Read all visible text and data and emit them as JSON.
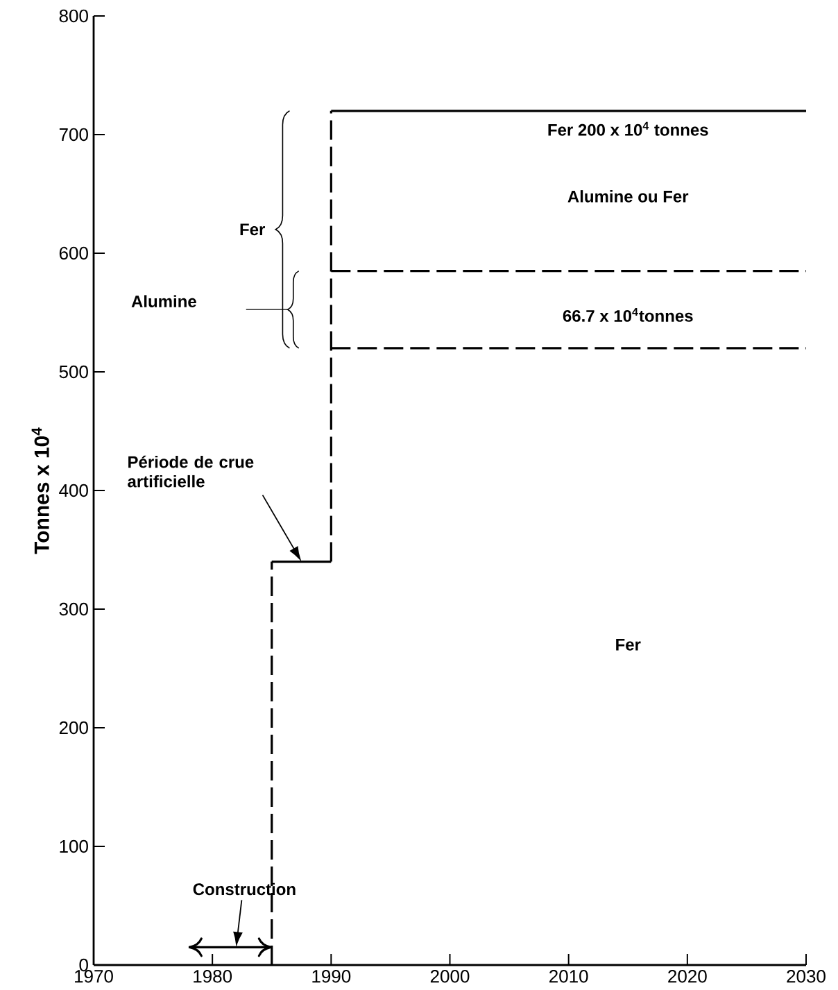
{
  "chart_data": {
    "type": "line",
    "ylabel": "Tonnes x 10$^{4}$",
    "xlim": [
      1970,
      2030
    ],
    "xticks": [
      1970,
      1980,
      1990,
      2000,
      2010,
      2020,
      2030
    ],
    "ylim": [
      0,
      800
    ],
    "yticks": [
      0,
      100,
      200,
      300,
      400,
      500,
      600,
      700,
      800
    ],
    "grid": false,
    "marker": "none",
    "series": [
      {
        "color": "#000000",
        "line_style": "dashed",
        "x": [
          1985,
          1985
        ],
        "values": [
          0,
          340
        ]
      },
      {
        "color": "#000000",
        "line_style": "solid",
        "x": [
          1985,
          1990
        ],
        "values": [
          340,
          340
        ]
      },
      {
        "color": "#000000",
        "line_style": "dashed",
        "x": [
          1990,
          1990
        ],
        "values": [
          340,
          720
        ]
      },
      {
        "color": "#000000",
        "line_style": "solid",
        "x": [
          1990,
          2030
        ],
        "values": [
          720,
          720
        ]
      },
      {
        "color": "#000000",
        "line_style": "dashed",
        "x": [
          1990,
          2030
        ],
        "values": [
          585,
          585
        ]
      },
      {
        "color": "#000000",
        "line_style": "dashed",
        "x": [
          1990,
          2030
        ],
        "values": [
          520,
          520
        ]
      },
      {
        "color": "#000000",
        "line_style": "solid",
        "x": [
          1978,
          1985
        ],
        "values": [
          15,
          15
        ]
      }
    ],
    "annotations": [
      "Fer 200 x 10$^{4}$ tonnes",
      "Alumine ou Fer",
      "66.7 x 10$^{4}$tonnes",
      "Fer",
      "Fer",
      "Alumine",
      "Période de crue artificielle",
      "Construction"
    ]
  }
}
